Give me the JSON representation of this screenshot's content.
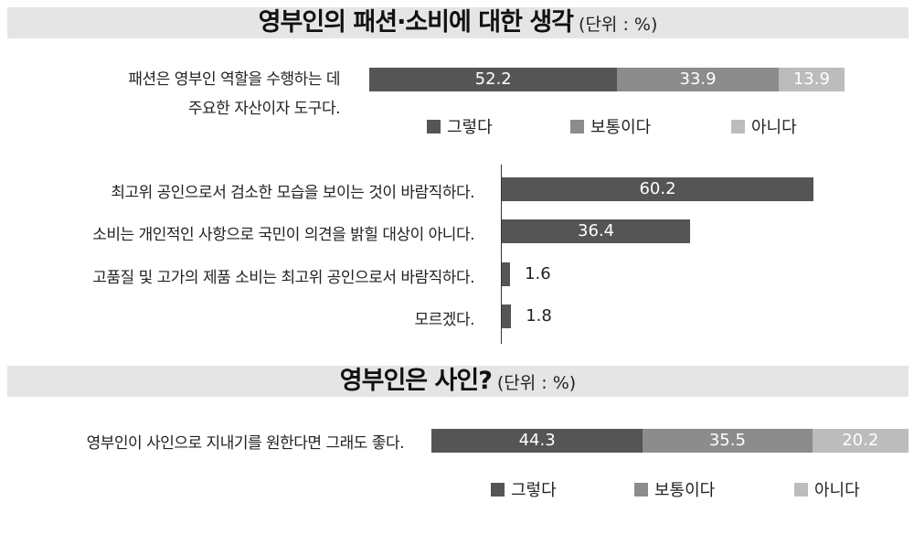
{
  "chart_data": [
    {
      "type": "bar",
      "title": "영부인의 패션·소비에 대한 생각",
      "unit": "(단위 : %)",
      "stacked": true,
      "categories": [
        "패션은 영부인 역할을 수행하는 데 주요한 자산이자 도구다."
      ],
      "category_lines": [
        "패션은 영부인 역할을 수행하는 데",
        "주요한 자산이자 도구다."
      ],
      "series": [
        {
          "name": "그렇다",
          "values": [
            52.2
          ],
          "color": "#555555"
        },
        {
          "name": "보통이다",
          "values": [
            33.9
          ],
          "color": "#8c8c8c"
        },
        {
          "name": "아니다",
          "values": [
            13.9
          ],
          "color": "#bcbcbc"
        }
      ],
      "legend": "bottom"
    },
    {
      "type": "bar",
      "orientation": "horizontal",
      "categories": [
        "최고위 공인으로서 검소한 모습을 보이는 것이 바람직하다.",
        "소비는 개인적인 사항으로 국민이 의견을 밝힐 대상이 아니다.",
        "고품질 및 고가의 제품 소비는 최고위 공인으로서 바람직하다.",
        "모르겠다."
      ],
      "values": [
        60.2,
        36.4,
        1.6,
        1.8
      ],
      "color": "#555555"
    },
    {
      "type": "bar",
      "title": "영부인은 사인?",
      "unit": "(단위 : %)",
      "stacked": true,
      "categories": [
        "영부인이 사인으로 지내기를 원한다면 그래도 좋다."
      ],
      "series": [
        {
          "name": "그렇다",
          "values": [
            44.3
          ],
          "color": "#555555"
        },
        {
          "name": "보통이다",
          "values": [
            35.5
          ],
          "color": "#8c8c8c"
        },
        {
          "name": "아니다",
          "values": [
            20.2
          ],
          "color": "#bcbcbc"
        }
      ],
      "legend": "bottom"
    }
  ]
}
